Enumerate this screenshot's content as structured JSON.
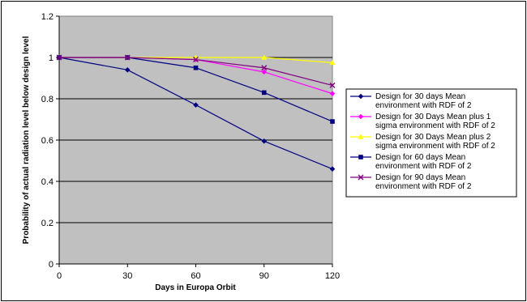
{
  "chart_data": {
    "type": "line",
    "title": "",
    "xlabel": "Days in Europa Orbit",
    "ylabel": "Probability of actual radiation level below design level",
    "x": [
      0,
      30,
      60,
      90,
      120
    ],
    "xlim": [
      0,
      120
    ],
    "ylim": [
      0,
      1.2
    ],
    "x_ticks": [
      "0",
      "30",
      "60",
      "90",
      "120"
    ],
    "y_ticks": [
      "0",
      "0.2",
      "0.4",
      "0.6",
      "0.8",
      "1",
      "1.2"
    ],
    "grid": true,
    "plot_background": "#c0c0c0",
    "legend_position": "right",
    "series": [
      {
        "name": "Design for 30 days Mean environment with RDF of 2",
        "legend_lines": [
          "Design for 30 days Mean",
          "environment with RDF of 2"
        ],
        "color": "#000080",
        "marker": "diamond",
        "values": [
          1.0,
          0.94,
          0.77,
          0.595,
          0.46
        ]
      },
      {
        "name": "Design for 30 Days Mean plus 1 sigma environment with RDF of 2",
        "legend_lines": [
          "Design for 30 Days Mean plus 1",
          "sigma environment with RDF of 2"
        ],
        "color": "#ff00ff",
        "marker": "diamond",
        "values": [
          1.0,
          1.0,
          0.99,
          0.93,
          0.825
        ]
      },
      {
        "name": "Design for 30 Days Mean plus 2 sigma environment with RDF of 2",
        "legend_lines": [
          "Design for 30 Days Mean plus 2",
          "sigma environment with RDF of 2"
        ],
        "color": "#ffff00",
        "marker": "triangle",
        "values": [
          1.0,
          1.0,
          1.0,
          1.0,
          0.975
        ]
      },
      {
        "name": "Design for 60 days Mean environment with RDF of 2",
        "legend_lines": [
          "Design for 60 days Mean",
          "environment with RDF of 2"
        ],
        "color": "#000080",
        "marker": "square",
        "values": [
          1.0,
          1.0,
          0.95,
          0.83,
          0.69
        ]
      },
      {
        "name": "Design for 90 days Mean environment with RDF of 2",
        "legend_lines": [
          "Design for 90 days Mean",
          "environment with RDF of 2"
        ],
        "color": "#800080",
        "marker": "x",
        "values": [
          1.0,
          1.0,
          0.99,
          0.95,
          0.865
        ]
      }
    ]
  }
}
